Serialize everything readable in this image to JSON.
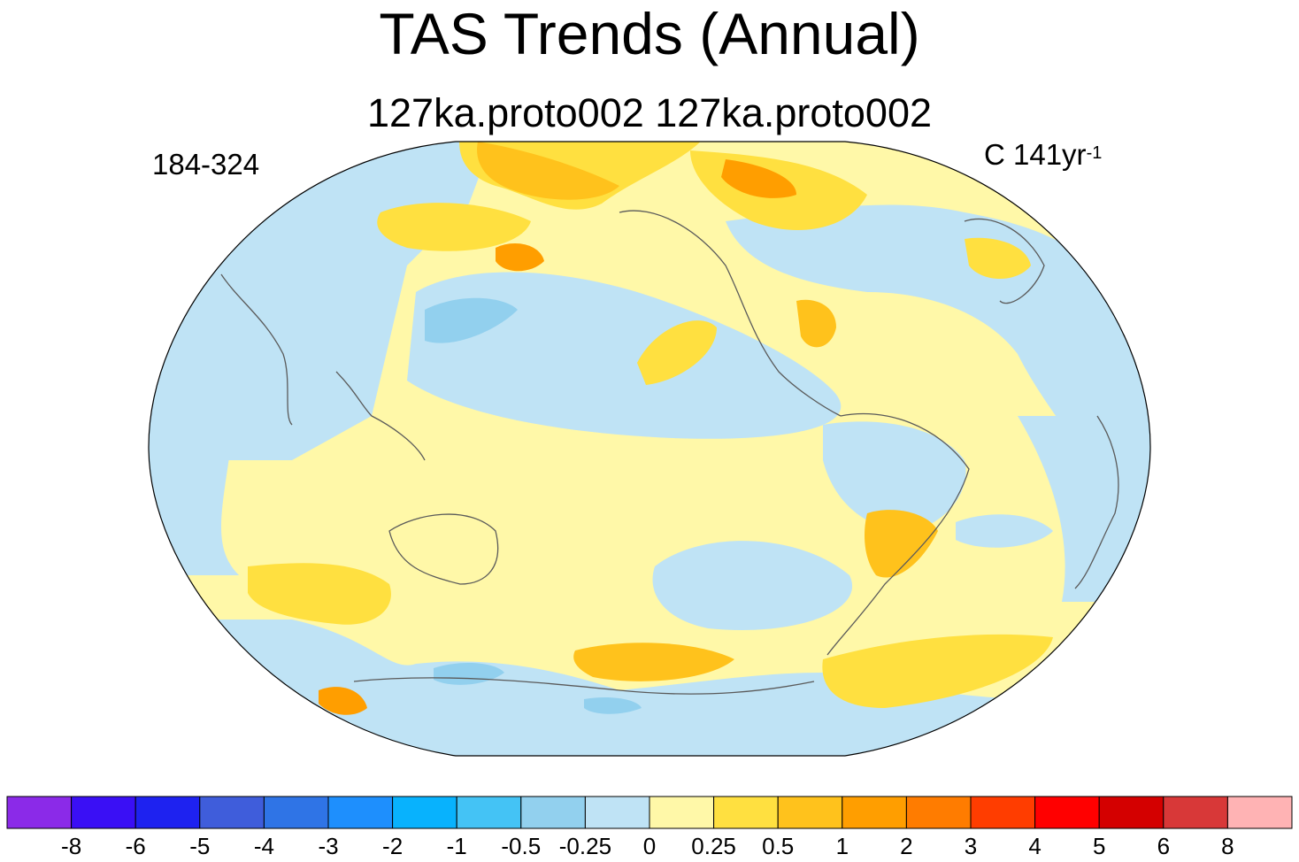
{
  "title": "TAS Trends (Annual)",
  "subtitle": "127ka.proto002  127ka.proto002",
  "left_label": "184-324",
  "right_label": {
    "prefix": "C 141yr",
    "superscript": "-1"
  },
  "colorbar": {
    "colors": [
      "#8b2ae8",
      "#3a0ff5",
      "#1e22f0",
      "#3f5ddb",
      "#2f74e6",
      "#1e8ffd",
      "#08b2fd",
      "#44c3f5",
      "#92d0ee",
      "#bfe3f5",
      "#fff8a8",
      "#ffe040",
      "#ffc21c",
      "#ff9e00",
      "#ff7c00",
      "#ff3d00",
      "#ff0000",
      "#d40000",
      "#d83838",
      "#ffb3b4"
    ],
    "tick_labels": [
      "-8",
      "-6",
      "-5",
      "-4",
      "-3",
      "-2",
      "-1",
      "-0.5",
      "-0.25",
      "0",
      "0.25",
      "0.5",
      "1",
      "2",
      "3",
      "4",
      "5",
      "6",
      "8"
    ]
  }
}
